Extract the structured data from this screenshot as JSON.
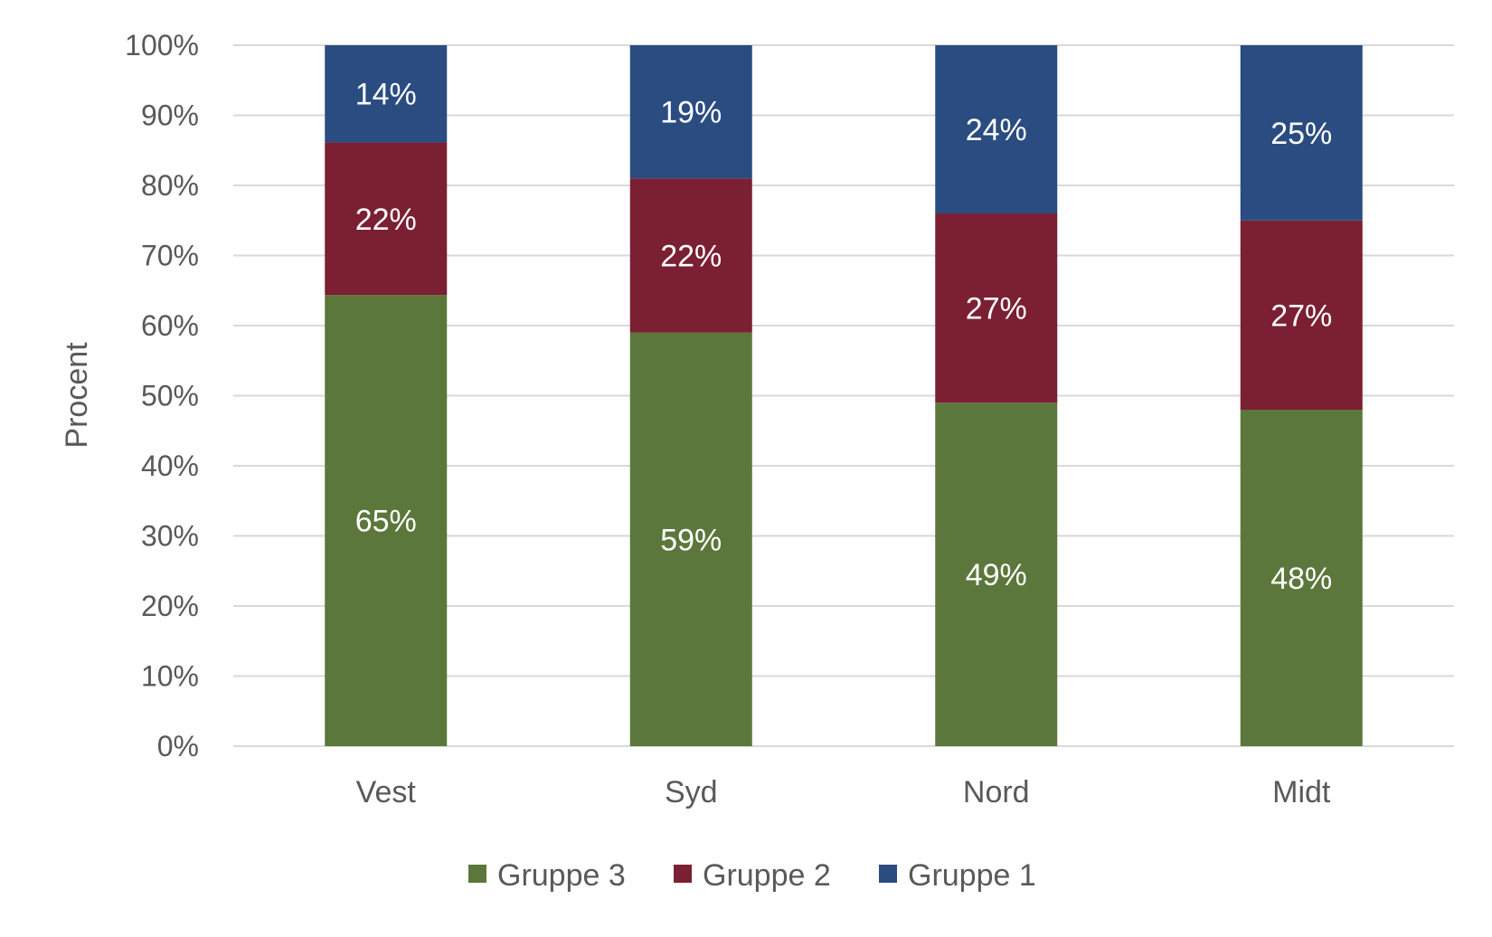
{
  "chart_data": {
    "type": "bar",
    "stacked": true,
    "categories": [
      "Vest",
      "Syd",
      "Nord",
      "Midt"
    ],
    "series": [
      {
        "name": "Gruppe 3",
        "color": "#5b773b",
        "values": [
          65,
          59,
          49,
          48
        ],
        "labels": [
          "65%",
          "59%",
          "49%",
          "48%"
        ]
      },
      {
        "name": "Gruppe 2",
        "color": "#7b1f32",
        "values": [
          22,
          22,
          27,
          27
        ],
        "labels": [
          "22%",
          "22%",
          "27%",
          "27%"
        ]
      },
      {
        "name": "Gruppe 1",
        "color": "#2a4c80",
        "values": [
          14,
          19,
          24,
          25
        ],
        "labels": [
          "14%",
          "19%",
          "24%",
          "25%"
        ]
      }
    ],
    "ylabel": "Procent",
    "xlabel": "",
    "ylim": [
      0,
      100
    ],
    "yticks": [
      "0%",
      "10%",
      "20%",
      "30%",
      "40%",
      "50%",
      "60%",
      "70%",
      "80%",
      "90%",
      "100%"
    ],
    "grid": true,
    "legend_position": "bottom"
  }
}
